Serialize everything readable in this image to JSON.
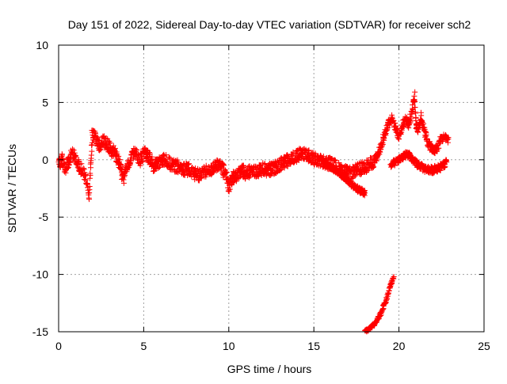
{
  "chart_data": {
    "type": "scatter",
    "title": "Day 151 of 2022, Sidereal Day-to-day VTEC variation (SDTVAR) for receiver sch2",
    "xlabel": "GPS time / hours",
    "ylabel": "SDTVAR / TECUs",
    "xlim": [
      0,
      25
    ],
    "ylim": [
      -15,
      10
    ],
    "x_ticks": [
      0,
      5,
      10,
      15,
      20,
      25
    ],
    "y_ticks": [
      -15,
      -10,
      -5,
      0,
      5,
      10
    ],
    "x_tick_labels": [
      "0",
      "5",
      "10",
      "15",
      "20",
      "25"
    ],
    "y_tick_labels": [
      "-15",
      "-10",
      "-5",
      "0",
      "5",
      "10"
    ],
    "grid": true,
    "marker": "+",
    "series": [
      {
        "name": "main_band",
        "spread": 0.55,
        "points": [
          [
            0.0,
            -0.3
          ],
          [
            0.2,
            0.0
          ],
          [
            0.4,
            -0.8
          ],
          [
            0.6,
            -0.2
          ],
          [
            0.8,
            0.6
          ],
          [
            1.0,
            0.2
          ],
          [
            1.2,
            -0.5
          ],
          [
            1.4,
            -0.9
          ],
          [
            1.6,
            -1.8
          ],
          [
            1.8,
            -3.2
          ],
          [
            1.9,
            0.0
          ],
          [
            2.0,
            2.3
          ],
          [
            2.2,
            1.8
          ],
          [
            2.4,
            1.2
          ],
          [
            2.6,
            1.5
          ],
          [
            2.8,
            1.6
          ],
          [
            3.0,
            1.0
          ],
          [
            3.3,
            0.6
          ],
          [
            3.6,
            -0.4
          ],
          [
            3.8,
            -1.8
          ],
          [
            4.0,
            -0.8
          ],
          [
            4.3,
            0.6
          ],
          [
            4.6,
            0.4
          ],
          [
            4.8,
            0.0
          ],
          [
            5.0,
            0.6
          ],
          [
            5.3,
            0.2
          ],
          [
            5.6,
            -0.6
          ],
          [
            5.9,
            -0.2
          ],
          [
            6.2,
            0.0
          ],
          [
            6.5,
            -0.3
          ],
          [
            6.8,
            -0.5
          ],
          [
            7.1,
            -0.6
          ],
          [
            7.4,
            -0.8
          ],
          [
            7.7,
            -0.9
          ],
          [
            8.0,
            -1.2
          ],
          [
            8.3,
            -1.3
          ],
          [
            8.6,
            -1.1
          ],
          [
            8.9,
            -0.9
          ],
          [
            9.2,
            -0.6
          ],
          [
            9.5,
            -0.5
          ],
          [
            9.8,
            -1.2
          ],
          [
            10.0,
            -2.3
          ],
          [
            10.2,
            -1.6
          ],
          [
            10.5,
            -1.3
          ],
          [
            10.8,
            -1.0
          ],
          [
            11.1,
            -1.2
          ],
          [
            11.4,
            -0.9
          ],
          [
            11.7,
            -1.0
          ],
          [
            12.0,
            -0.8
          ],
          [
            12.3,
            -0.9
          ],
          [
            12.6,
            -0.8
          ],
          [
            12.9,
            -0.5
          ],
          [
            13.2,
            -0.3
          ],
          [
            13.5,
            0.0
          ],
          [
            13.8,
            0.2
          ],
          [
            14.1,
            0.4
          ],
          [
            14.4,
            0.6
          ],
          [
            14.7,
            0.3
          ],
          [
            15.0,
            0.1
          ],
          [
            15.3,
            -0.1
          ],
          [
            15.6,
            -0.2
          ],
          [
            15.9,
            -0.3
          ],
          [
            16.2,
            -0.5
          ],
          [
            16.5,
            -0.8
          ],
          [
            16.8,
            -1.0
          ],
          [
            17.1,
            -1.2
          ],
          [
            17.4,
            -1.0
          ],
          [
            17.7,
            -0.8
          ],
          [
            18.0,
            -0.6
          ],
          [
            18.3,
            -0.4
          ],
          [
            18.6,
            0.0
          ]
        ]
      },
      {
        "name": "descending_branch",
        "spread": 0.25,
        "points": [
          [
            15.5,
            -0.2
          ],
          [
            16.0,
            -0.6
          ],
          [
            16.5,
            -1.1
          ],
          [
            17.0,
            -1.8
          ],
          [
            17.5,
            -2.5
          ],
          [
            18.0,
            -2.9
          ]
        ]
      },
      {
        "name": "rising_branch",
        "spread": 0.35,
        "points": [
          [
            18.6,
            0.0
          ],
          [
            18.8,
            0.6
          ],
          [
            19.0,
            1.4
          ],
          [
            19.2,
            2.4
          ],
          [
            19.4,
            3.3
          ],
          [
            19.6,
            3.6
          ],
          [
            19.8,
            2.8
          ],
          [
            20.0,
            2.0
          ],
          [
            20.2,
            3.0
          ],
          [
            20.4,
            3.6
          ],
          [
            20.6,
            3.0
          ],
          [
            20.8,
            4.4
          ],
          [
            20.9,
            5.6
          ],
          [
            21.0,
            3.5
          ],
          [
            21.1,
            2.5
          ],
          [
            21.3,
            3.8
          ],
          [
            21.5,
            2.5
          ],
          [
            21.7,
            1.5
          ],
          [
            21.9,
            1.0
          ],
          [
            22.1,
            0.8
          ],
          [
            22.3,
            1.2
          ],
          [
            22.5,
            1.8
          ],
          [
            22.7,
            2.0
          ],
          [
            22.9,
            1.8
          ]
        ]
      },
      {
        "name": "lower_branch",
        "spread": 0.3,
        "points": [
          [
            19.5,
            -0.5
          ],
          [
            20.0,
            0.0
          ],
          [
            20.5,
            0.5
          ],
          [
            21.0,
            -0.3
          ],
          [
            21.5,
            -0.8
          ],
          [
            22.0,
            -0.9
          ],
          [
            22.5,
            -0.6
          ],
          [
            22.8,
            -0.2
          ]
        ]
      },
      {
        "name": "offscale_drop",
        "spread": 0.15,
        "points": [
          [
            18.0,
            -15.0
          ],
          [
            18.3,
            -14.7
          ],
          [
            18.6,
            -14.3
          ],
          [
            18.9,
            -13.5
          ],
          [
            19.1,
            -12.8
          ],
          [
            19.3,
            -12.0
          ],
          [
            19.5,
            -11.0
          ],
          [
            19.7,
            -10.2
          ]
        ]
      }
    ]
  }
}
